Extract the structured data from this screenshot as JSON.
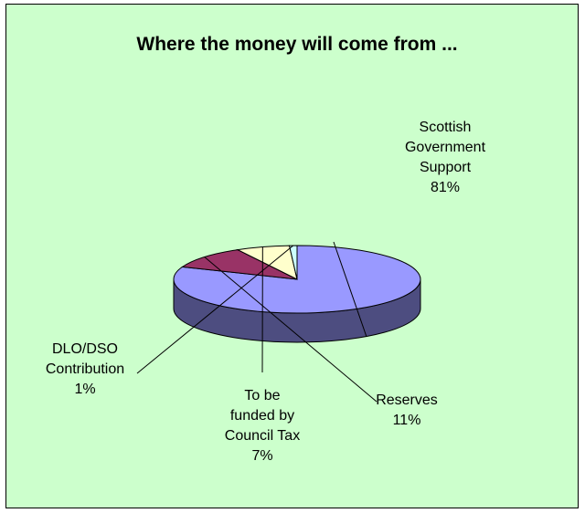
{
  "chart_data": {
    "type": "pie",
    "title": "Where the money will come from ...",
    "slices": [
      {
        "name": "Scottish Government Support",
        "label_lines": [
          "Scottish",
          "Government",
          "Support"
        ],
        "percent_label": "81%",
        "value": 81,
        "color": "#9999ff",
        "side_color": "#4d4d80"
      },
      {
        "name": "Reserves",
        "label_lines": [
          "Reserves"
        ],
        "percent_label": "11%",
        "value": 11,
        "color": "#993366",
        "side_color": "#4d1a33"
      },
      {
        "name": "To be funded by Council Tax",
        "label_lines": [
          "To be",
          "funded by",
          "Council Tax"
        ],
        "percent_label": "7%",
        "value": 7,
        "color": "#ffffcc",
        "side_color": "#808066"
      },
      {
        "name": "DLO/DSO Contribution",
        "label_lines": [
          "DLO/DSO",
          "Contribution"
        ],
        "percent_label": "1%",
        "value": 1,
        "color": "#ccffff",
        "side_color": "#668080"
      }
    ],
    "legend": "none",
    "background_color": "#ccffcc"
  }
}
